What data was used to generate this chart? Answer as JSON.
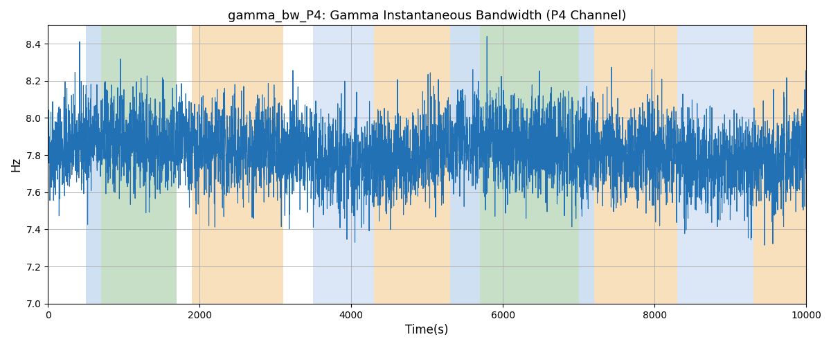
{
  "title": "gamma_bw_P4: Gamma Instantaneous Bandwidth (P4 Channel)",
  "xlabel": "Time(s)",
  "ylabel": "Hz",
  "xlim": [
    0,
    10000
  ],
  "ylim": [
    7.0,
    8.5
  ],
  "line_color": "#2271b5",
  "line_width": 0.8,
  "background_color": "#ffffff",
  "grid_color": "#aaaaaa",
  "bands": [
    {
      "xmin": 500,
      "xmax": 700,
      "color": "#a8c8e8",
      "alpha": 0.55
    },
    {
      "xmin": 700,
      "xmax": 1700,
      "color": "#90c090",
      "alpha": 0.5
    },
    {
      "xmin": 1900,
      "xmax": 3100,
      "color": "#f5c888",
      "alpha": 0.55
    },
    {
      "xmin": 3500,
      "xmax": 4300,
      "color": "#c4d8f0",
      "alpha": 0.6
    },
    {
      "xmin": 4300,
      "xmax": 5300,
      "color": "#f5c888",
      "alpha": 0.55
    },
    {
      "xmin": 5300,
      "xmax": 5700,
      "color": "#a8c8e8",
      "alpha": 0.55
    },
    {
      "xmin": 5700,
      "xmax": 7000,
      "color": "#90c090",
      "alpha": 0.5
    },
    {
      "xmin": 7000,
      "xmax": 7200,
      "color": "#a8c8e8",
      "alpha": 0.55
    },
    {
      "xmin": 7200,
      "xmax": 8300,
      "color": "#f5c888",
      "alpha": 0.55
    },
    {
      "xmin": 8300,
      "xmax": 9300,
      "color": "#c4d8f0",
      "alpha": 0.6
    },
    {
      "xmin": 9300,
      "xmax": 10000,
      "color": "#f5c888",
      "alpha": 0.55
    }
  ],
  "seed": 42,
  "n_points": 5000,
  "mean": 7.82,
  "std": 0.14
}
